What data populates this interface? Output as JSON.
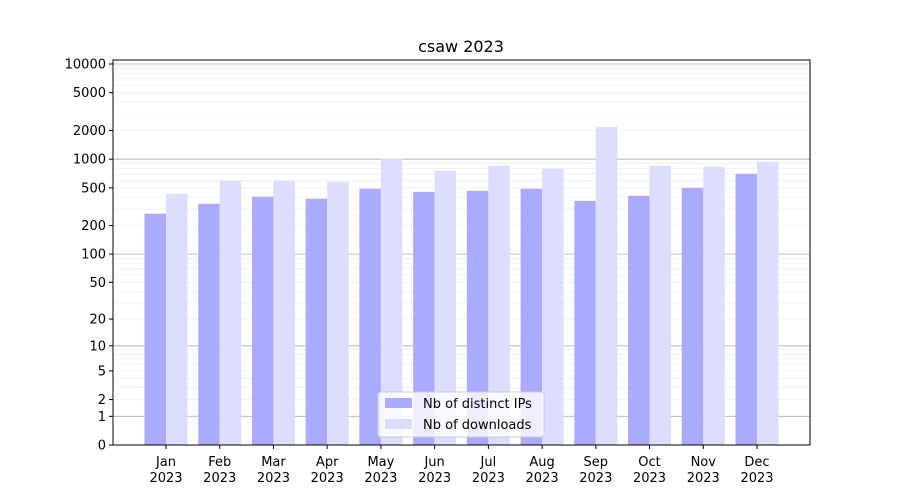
{
  "chart_data": {
    "type": "bar",
    "title": "csaw 2023",
    "xlabel": "",
    "ylabel": "",
    "yscale": "log10(1+y)",
    "ylim": [
      0,
      10000
    ],
    "grid": "horizontal, major and minor",
    "legend_placement": "bottom-center",
    "categories": [
      [
        "Jan",
        "2023"
      ],
      [
        "Feb",
        "2023"
      ],
      [
        "Mar",
        "2023"
      ],
      [
        "Apr",
        "2023"
      ],
      [
        "May",
        "2023"
      ],
      [
        "Jun",
        "2023"
      ],
      [
        "Jul",
        "2023"
      ],
      [
        "Aug",
        "2023"
      ],
      [
        "Sep",
        "2023"
      ],
      [
        "Oct",
        "2023"
      ],
      [
        "Nov",
        "2023"
      ],
      [
        "Dec",
        "2023"
      ]
    ],
    "yticks": [
      0,
      1,
      2,
      5,
      10,
      20,
      50,
      100,
      200,
      500,
      1000,
      2000,
      5000,
      10000
    ],
    "ytick_labels": [
      "0",
      "1",
      "2",
      "5",
      "10",
      "20",
      "50",
      "100",
      "200",
      "500",
      "1000",
      "2000",
      "5000",
      "10000"
    ],
    "series": [
      {
        "name": "Nb of distinct IPs",
        "color": "#aaaaff",
        "values": [
          267,
          340,
          403,
          384,
          489,
          454,
          465,
          489,
          365,
          412,
          500,
          702
        ]
      },
      {
        "name": "Nb of downloads",
        "color": "#ddddff",
        "values": [
          433,
          593,
          593,
          579,
          1009,
          755,
          853,
          793,
          2188,
          853,
          832,
          939
        ]
      }
    ]
  }
}
